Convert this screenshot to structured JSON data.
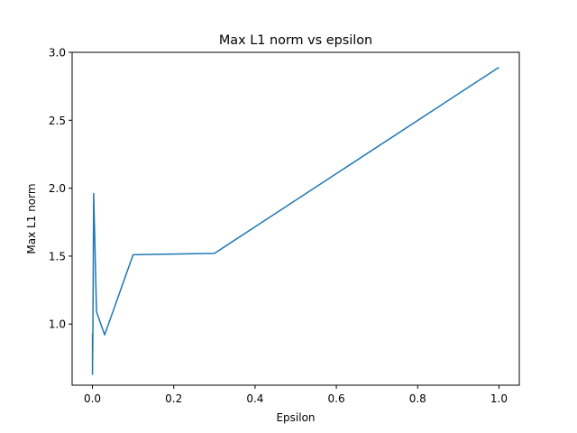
{
  "chart_data": {
    "type": "line",
    "title": "Max L1 norm vs epsilon",
    "xlabel": "Epsilon",
    "ylabel": "Max L1 norm",
    "xlim": [
      -0.05,
      1.05
    ],
    "ylim": [
      0.55,
      3.0
    ],
    "xticks": [
      0.0,
      0.2,
      0.4,
      0.6,
      0.8,
      1.0
    ],
    "xtick_labels": [
      "0.0",
      "0.2",
      "0.4",
      "0.6",
      "0.8",
      "1.0"
    ],
    "yticks": [
      1.0,
      1.5,
      2.0,
      2.5,
      3.0
    ],
    "ytick_labels": [
      "1.0",
      "1.5",
      "2.0",
      "2.5",
      "3.0"
    ],
    "grid": false,
    "series": [
      {
        "color": "#1f77b4",
        "x": [
          0.0,
          0.0001,
          0.0003,
          0.001,
          0.003,
          0.01,
          0.03,
          0.1,
          0.3,
          1.0
        ],
        "y": [
          0.93,
          0.63,
          0.72,
          0.9,
          1.96,
          1.09,
          0.92,
          1.51,
          1.52,
          2.89
        ]
      }
    ]
  }
}
